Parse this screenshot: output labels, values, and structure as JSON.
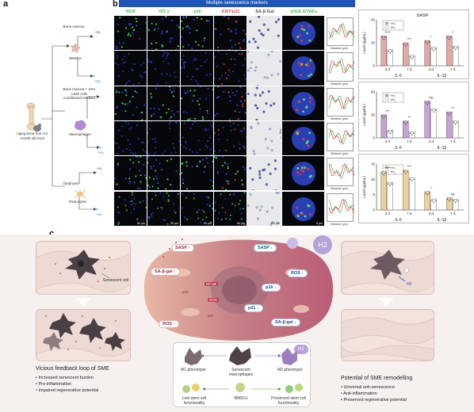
{
  "panel_letters": {
    "a": "a",
    "b": "b",
    "c": "c"
  },
  "panel_a": {
    "source": "Aging bone from 24-month old mice",
    "branches": [
      {
        "label": "Bone marrow",
        "cells": "BMSCs"
      },
      {
        "label": "Bone marrow + 15% L929 cells conditioned medium",
        "cells": "Macrophages"
      },
      {
        "label": "Diaphysis",
        "cells": "Osteocytes"
      }
    ],
    "treat_minus": "−H₂",
    "treat_plus": "+H₂"
  },
  "panel_b": {
    "banner": "Multiple senescence markers",
    "columns": [
      "ROS",
      "HO-1",
      "p16",
      "Ki67/p21",
      "SA-β-Gal",
      "γH2A.X/TAFs"
    ],
    "column_colors": [
      "#3fbf4a",
      "#3fbf4a",
      "#3fbf4a",
      "#d74a4a",
      "#555555",
      "#3fbf4a"
    ],
    "scale_bars": [
      "50 μm",
      "50 μm",
      "50 μm",
      "50 μm",
      "100 μm",
      "5 μm"
    ],
    "profile_axis": "Distance (μm)",
    "profile_y": "Intensity (a.u.)"
  },
  "chart_data": [
    {
      "type": "bar",
      "title": "SASP",
      "ylabel": "Level (pg/mL)",
      "groups": [
        "IL-6",
        "IL-1β"
      ],
      "categories": [
        "3 d",
        "7 d",
        "3 d",
        "7 d"
      ],
      "series": [
        {
          "name": "−H₂",
          "values": [
            26,
            20,
            22,
            26
          ]
        },
        {
          "name": "+H₂",
          "values": [
            14,
            9,
            16,
            17
          ]
        }
      ],
      "ylim": [
        0,
        40
      ],
      "yticks": [
        "0",
        "20",
        "40"
      ],
      "significance": [
        "****",
        "***",
        "*",
        "*"
      ],
      "color": "#e7a6a1"
    },
    {
      "type": "bar",
      "title": "",
      "ylabel": "Level (pg/mL)",
      "groups": [
        "IL-6",
        "IL-1β"
      ],
      "categories": [
        "3 d",
        "7 d",
        "3 d",
        "7 d"
      ],
      "series": [
        {
          "name": "−H₂",
          "values": [
            30,
            22,
            48,
            34
          ]
        },
        {
          "name": "+H₂",
          "values": [
            10,
            8,
            38,
            22
          ]
        }
      ],
      "ylim": [
        0,
        60
      ],
      "yticks": [
        "0",
        "30",
        "60"
      ],
      "significance": [
        "***",
        "**",
        "ns",
        "**"
      ],
      "color": "#c9a2d8"
    },
    {
      "type": "bar",
      "title": "",
      "ylabel": "Level (pg/mL)",
      "groups": [
        "IL-6",
        "IL-1β"
      ],
      "categories": [
        "3 d",
        "7 d",
        "3 d",
        "7 d"
      ],
      "series": [
        {
          "name": "−H₂",
          "values": [
            12.5,
            13,
            6,
            4
          ]
        },
        {
          "name": "+H₂",
          "values": [
            9,
            10.5,
            3.5,
            3.5
          ]
        }
      ],
      "ylim": [
        0,
        15
      ],
      "yticks": [
        "0",
        "5",
        "10",
        "15"
      ],
      "significance": [
        "****",
        "***",
        "*",
        "ns"
      ],
      "color": "#efd09a"
    }
  ],
  "panel_c": {
    "left_title": "Vicious feedback loop of SME",
    "left_bullets": [
      "• Increased senescent burden",
      "• Pro-inflammation",
      "• Impaired regenerative potential"
    ],
    "senescent_cell": "Senescent cell",
    "right_title": "Potential of SME remodelling",
    "right_bullets": [
      "• Universal anti-senescence",
      "• Anti-inflammation",
      "• Preserved regenerative potential"
    ],
    "h2_badge": "H2",
    "h2_small": "H2",
    "left_markers": [
      "SASP",
      "SA-β-gal",
      "ROS"
    ],
    "left_inner": [
      "p16",
      "p21",
      "NF-κB",
      "ROS"
    ],
    "right_markers": [
      "SASP",
      "ROS",
      "p16",
      "p21",
      "SA-β-gal"
    ],
    "macrophages": {
      "m1": "M1 phenotype",
      "sen": "Senescent macrophages",
      "m2": "M2 phenotype"
    },
    "stem": {
      "lost": "Lost stem cell functionality",
      "bmscs": "BMSCs",
      "preserved": "Preserved stem cell functionality"
    }
  }
}
